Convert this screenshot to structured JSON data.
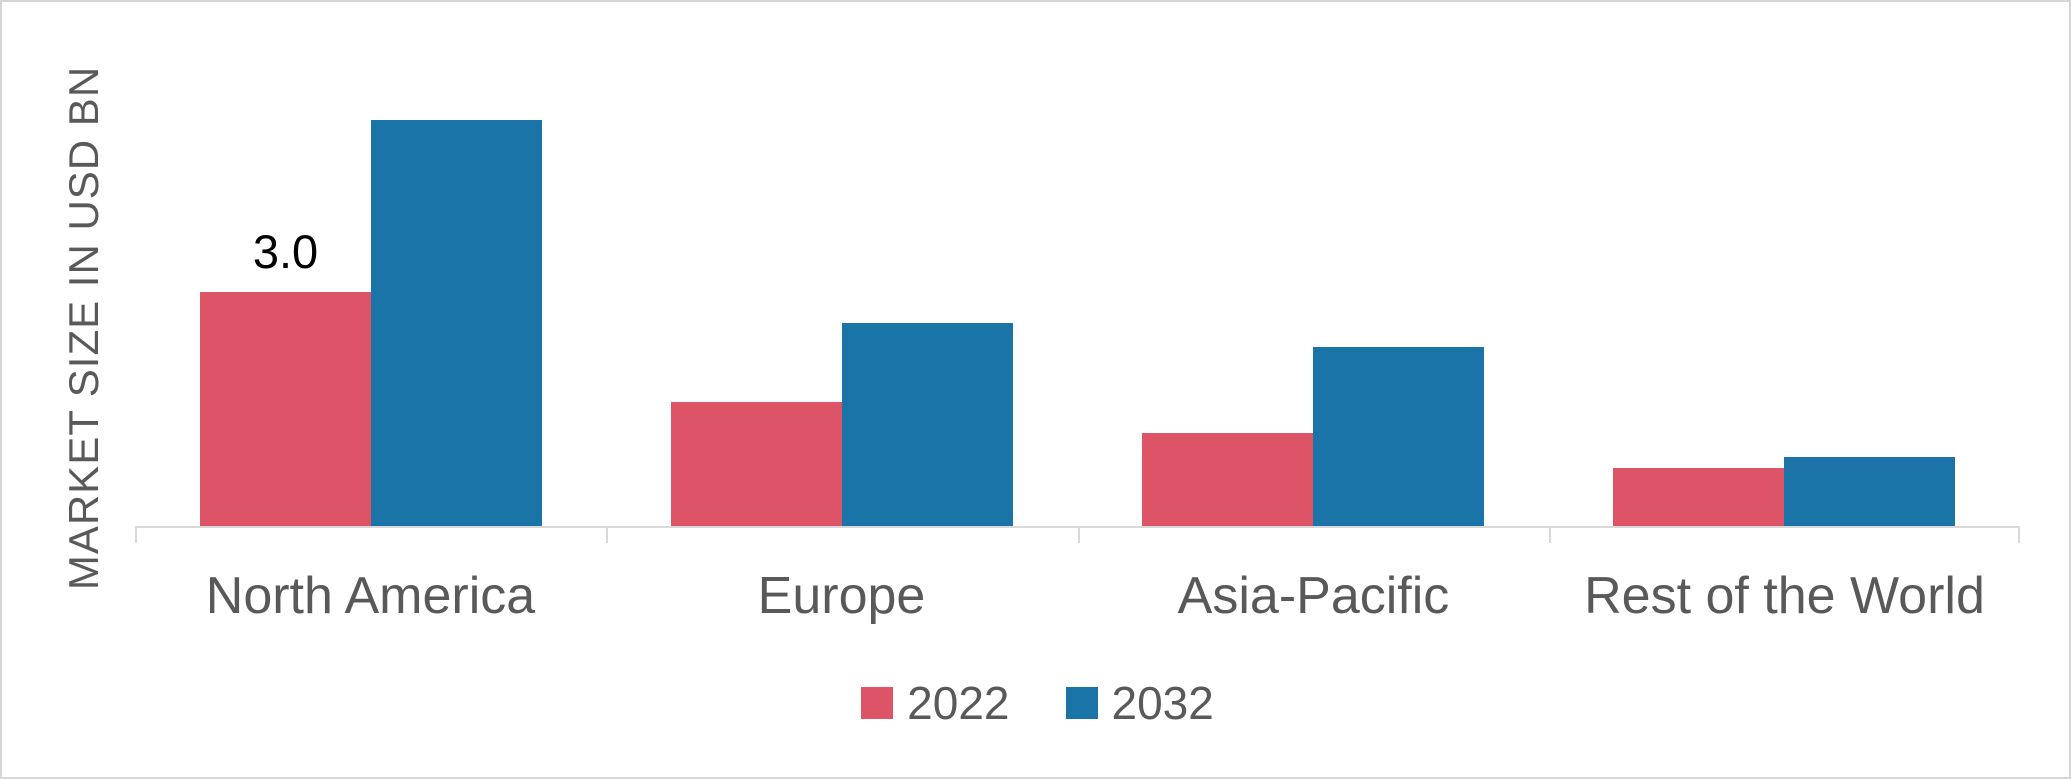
{
  "chart_data": {
    "type": "bar",
    "title": "",
    "ylabel": "MARKET SIZE IN USD BN",
    "xlabel": "",
    "categories": [
      "North America",
      "Europe",
      "Asia-Pacific",
      "Rest of the World"
    ],
    "series": [
      {
        "name": "2022",
        "color": "#dc5465",
        "values": [
          3.0,
          1.6,
          1.2,
          0.75
        ]
      },
      {
        "name": "2032",
        "color": "#1a74a7",
        "values": [
          5.2,
          2.6,
          2.3,
          0.9
        ]
      }
    ],
    "data_labels": [
      {
        "series_index": 0,
        "category_index": 0,
        "text": "3.0"
      }
    ],
    "ylim": [
      0,
      5.6
    ],
    "grid": false,
    "y_axis_ticks_visible": false,
    "legend_position": "bottom"
  },
  "style_colors": {
    "axis_line": "#d9d9d9",
    "tick": "#d9d9d9",
    "text_gray": "#595959",
    "data_label_color": "#000000",
    "frame_border": "#d6d6d6",
    "background": "#ffffff"
  }
}
